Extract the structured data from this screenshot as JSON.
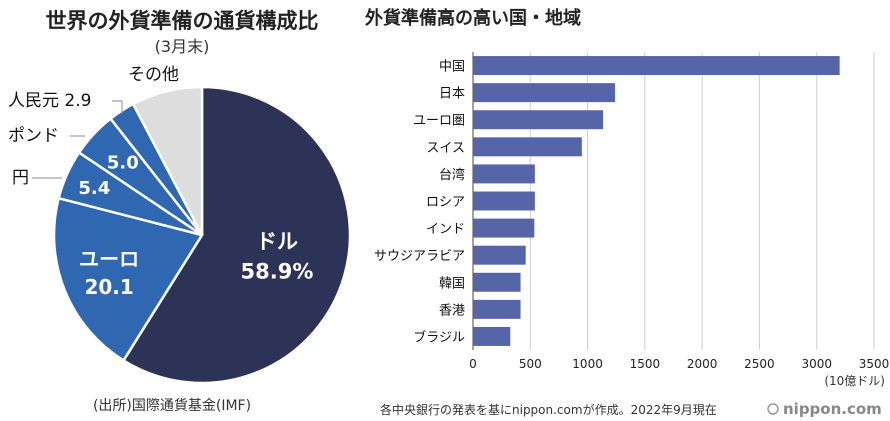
{
  "colors": {
    "dollar": "#2c3357",
    "euro": "#2f67b1",
    "yen": "#2f67b1",
    "pound": "#2f67b1",
    "yuan": "#2f67b1",
    "other": "#dddddd",
    "bar": "#5665a8",
    "logo": "#888888"
  },
  "footer": {
    "source_left": "(出所)国際通貨基金(IMF)",
    "source_right": "各中央銀行の発表を基にnippon.comが作成。2022年9月現在",
    "logo": "nippon.com"
  },
  "chart_data": [
    {
      "type": "pie",
      "title": "世界の外貨準備の通貨構成比",
      "subtitle": "(3月末)",
      "slices": [
        {
          "label": "ドル",
          "value": 58.9,
          "value_label": "58.9%"
        },
        {
          "label": "ユーロ",
          "value": 20.1,
          "value_label": "20.1"
        },
        {
          "label": "円",
          "value": 5.4,
          "value_label": "5.4"
        },
        {
          "label": "ポンド",
          "value": 5.0,
          "value_label": "5.0"
        },
        {
          "label": "人民元",
          "value": 2.9,
          "value_label": "2.9"
        },
        {
          "label": "その他",
          "value": 7.7,
          "value_label": ""
        }
      ]
    },
    {
      "type": "bar",
      "orientation": "horizontal",
      "title": "外貨準備高の高い国・地域",
      "categories": [
        "中国",
        "日本",
        "ユーロ圏",
        "スイス",
        "台湾",
        "ロシア",
        "インド",
        "サウジアラビア",
        "韓国",
        "香港",
        "ブラジル"
      ],
      "values": [
        3200,
        1240,
        1135,
        950,
        540,
        540,
        535,
        460,
        415,
        415,
        325
      ],
      "xlim": [
        0,
        3500
      ],
      "xticks": [
        0,
        500,
        1000,
        1500,
        2000,
        2500,
        3000,
        3500
      ],
      "unit": "(10億ドル)",
      "grid": true
    }
  ]
}
